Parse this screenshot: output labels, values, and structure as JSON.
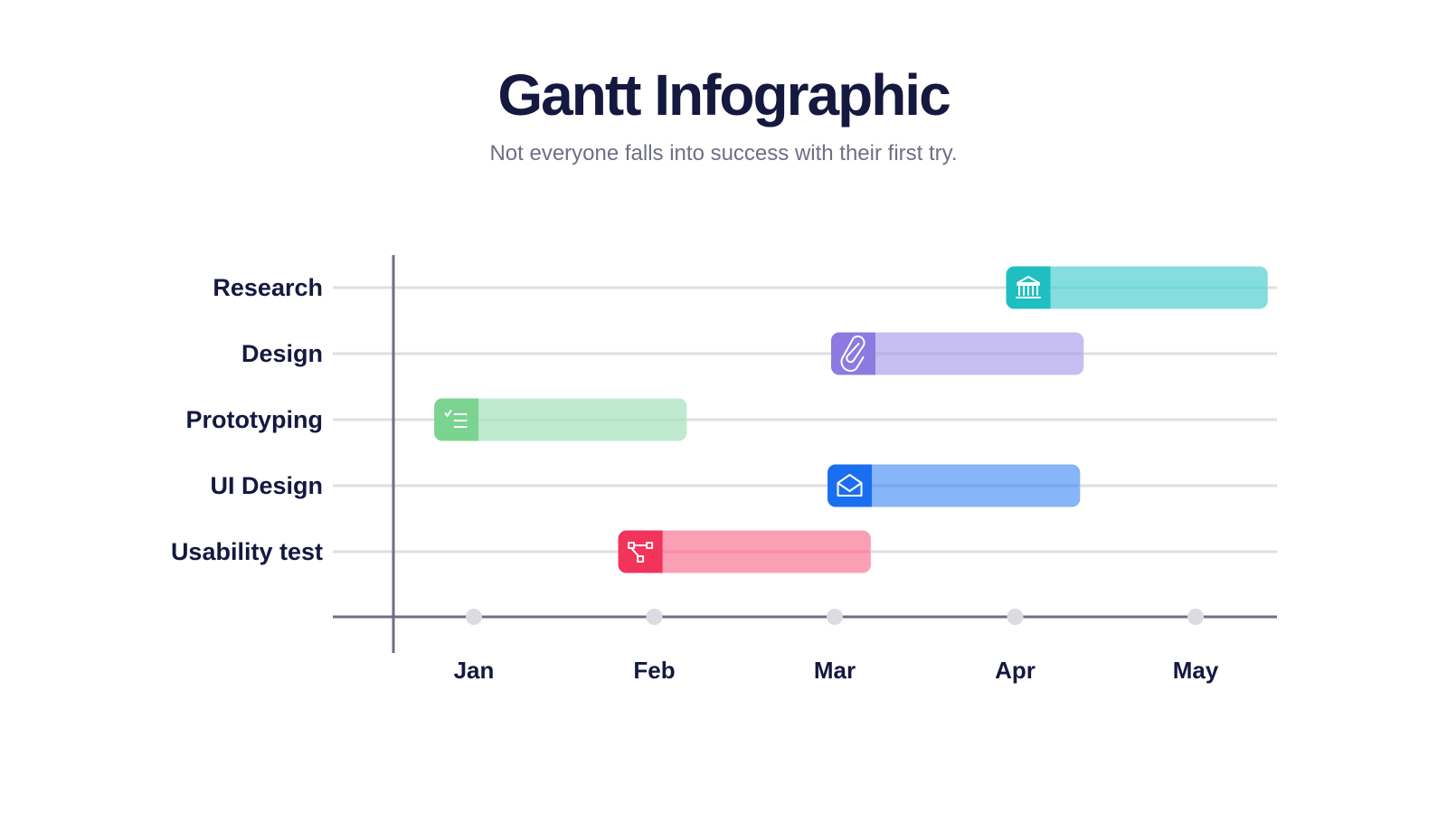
{
  "title": "Gantt Infographic",
  "subtitle": "Not everyone falls into success with their first try.",
  "chart_data": {
    "type": "gantt",
    "months": [
      "Jan",
      "Feb",
      "Mar",
      "Apr",
      "May"
    ],
    "tasks": [
      {
        "name": "Research",
        "start": 3.95,
        "end": 5.4,
        "icon": "bank-icon",
        "color": "#1fbfc1",
        "light": "#86dde0"
      },
      {
        "name": "Design",
        "start": 2.98,
        "end": 4.38,
        "icon": "paperclip-icon",
        "color": "#8c7ae0",
        "light": "#c6bef0"
      },
      {
        "name": "Prototyping",
        "start": 0.78,
        "end": 2.18,
        "icon": "checklist-icon",
        "color": "#7bd390",
        "light": "#bfead0"
      },
      {
        "name": "UI Design",
        "start": 2.96,
        "end": 4.36,
        "icon": "envelope-icon",
        "color": "#1a6ff0",
        "light": "#88b4f8"
      },
      {
        "name": "Usability test",
        "start": 1.8,
        "end": 3.2,
        "icon": "flowchart-icon",
        "color": "#f2335a",
        "light": "#fba0b4"
      }
    ]
  }
}
